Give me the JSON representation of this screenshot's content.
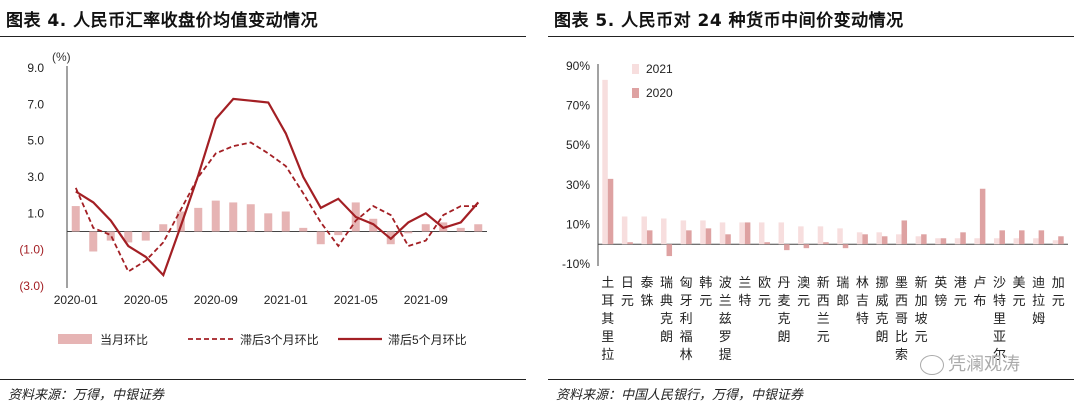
{
  "left": {
    "title": "图表 4. 人民币汇率收盘价均值变动情况",
    "source": "资料来源：万得，中银证券",
    "chart_data": {
      "type": "bar",
      "unit_label": "(%)",
      "ylim": [
        -3.0,
        9.0
      ],
      "y_ticks": [
        "9.0",
        "7.0",
        "5.0",
        "3.0",
        "1.0",
        "(1.0)",
        "(3.0)"
      ],
      "y_tick_values": [
        9,
        7,
        5,
        3,
        1,
        -1,
        -3
      ],
      "x_tick_labels": [
        "2020-01",
        "2020-05",
        "2020-09",
        "2021-01",
        "2021-05",
        "2021-09"
      ],
      "x_tick_index": [
        0,
        4,
        8,
        12,
        16,
        20
      ],
      "legend": [
        "当月环比",
        "滞后3个月环比",
        "滞后5个月环比"
      ],
      "bars": [
        1.4,
        -1.1,
        -0.5,
        -0.6,
        -0.5,
        0.4,
        1.1,
        1.3,
        1.7,
        1.6,
        1.5,
        1.0,
        1.1,
        0.2,
        -0.7,
        -0.2,
        1.6,
        0.7,
        -0.7,
        -0.1,
        0.4,
        0.5,
        0.2,
        0.4
      ],
      "lag3": [
        2.4,
        0.2,
        -0.2,
        -2.2,
        -1.6,
        -0.6,
        1.2,
        3.0,
        4.3,
        4.7,
        4.9,
        4.3,
        3.6,
        2.1,
        0.5,
        -0.8,
        0.6,
        1.4,
        0.9,
        -0.8,
        -0.5,
        0.9,
        1.4,
        1.4
      ],
      "lag5": [
        2.2,
        1.6,
        0.6,
        -0.8,
        -1.4,
        -2.4,
        0.3,
        3.1,
        6.2,
        7.3,
        7.2,
        7.1,
        5.4,
        3.0,
        1.3,
        1.8,
        0.8,
        0.4,
        -0.4,
        0.5,
        1.0,
        0.2,
        0.5,
        1.6
      ]
    }
  },
  "right": {
    "title": "图表 5. 人民币对 24 种货币中间价变动情况",
    "source": "资料来源：中国人民银行，万得，中银证券",
    "chart_data": {
      "type": "bar",
      "ylim": [
        -10,
        90
      ],
      "y_ticks": [
        "90%",
        "70%",
        "50%",
        "30%",
        "10%",
        "-10%"
      ],
      "y_tick_values": [
        90,
        70,
        50,
        30,
        10,
        -10
      ],
      "categories": [
        "土耳其里拉",
        "日元",
        "泰铢",
        "瑞典克朗",
        "匈牙利福林",
        "韩元",
        "波兰兹罗提",
        "兰特",
        "欧元",
        "丹麦克朗",
        "澳元",
        "新西兰元",
        "瑞郎",
        "林吉特",
        "挪威克朗",
        "墨西哥比索",
        "新加坡元",
        "英镑",
        "港元",
        "卢布",
        "沙特里亚尔",
        "美元",
        "迪拉姆",
        "加元"
      ],
      "series": [
        {
          "name": "2021",
          "color": "#f7dede",
          "values": [
            83,
            14,
            14,
            13,
            12,
            12,
            11,
            11,
            11,
            11,
            9,
            9,
            8,
            6,
            6,
            5,
            4,
            3,
            3,
            3,
            3,
            3,
            3,
            2
          ]
        },
        {
          "name": "2020",
          "color": "#dea2a2",
          "values": [
            33,
            1,
            7,
            -6,
            7,
            8,
            5,
            11,
            1,
            -3,
            -2,
            1,
            -2,
            5,
            4,
            12,
            5,
            3,
            6,
            28,
            7,
            7,
            7,
            4
          ]
        }
      ]
    }
  },
  "watermark": "凭澜观涛"
}
